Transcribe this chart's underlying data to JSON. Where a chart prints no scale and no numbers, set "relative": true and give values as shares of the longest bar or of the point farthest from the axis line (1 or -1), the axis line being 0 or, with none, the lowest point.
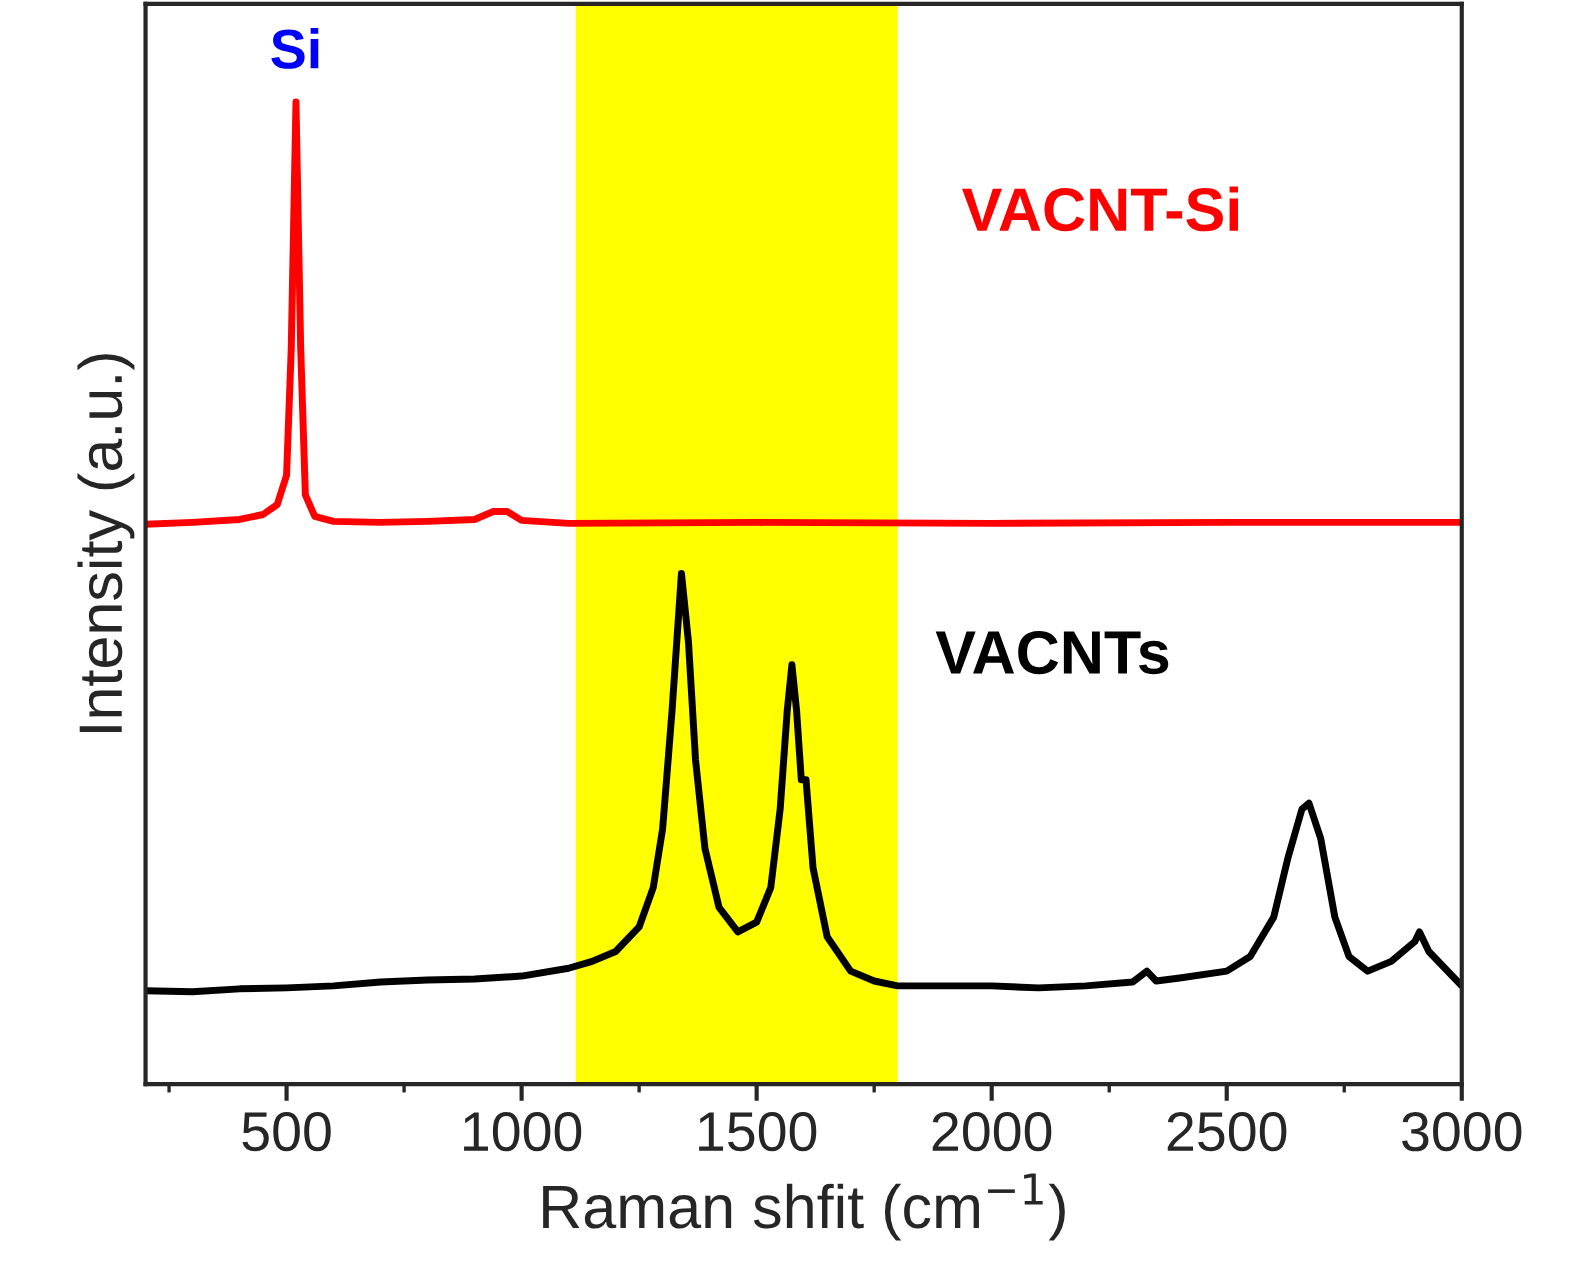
{
  "chart_data": {
    "type": "line",
    "relative": true,
    "xlabel": "Raman shfit (cm$^{−1}$)",
    "ylabel": "Intensity (a.u.)",
    "xlim": [
      200,
      3000
    ],
    "xticks": [
      500,
      1000,
      1500,
      2000,
      2500,
      3000
    ],
    "tick_labels": "x",
    "grid": false,
    "legend": false,
    "marker": "none",
    "line_style": "solid",
    "bands": [
      {
        "axis": "x",
        "from": 1115,
        "to": 1800,
        "color": "#ffff00"
      }
    ],
    "annotations": [
      {
        "text": "Si",
        "x": 520,
        "y": 1.0
      }
    ],
    "series": [
      {
        "name": "VACNT-Si",
        "color": "#ff0000",
        "x": [
          200,
          300,
          400,
          450,
          480,
          500,
          510,
          520,
          530,
          540,
          560,
          600,
          700,
          800,
          900,
          940,
          970,
          1000,
          1100,
          1500,
          2000,
          2500,
          3000
        ],
        "values": [
          0.57,
          0.572,
          0.575,
          0.58,
          0.59,
          0.62,
          0.75,
          1.0,
          0.75,
          0.6,
          0.578,
          0.573,
          0.572,
          0.573,
          0.575,
          0.583,
          0.583,
          0.574,
          0.571,
          0.572,
          0.571,
          0.572,
          0.572
        ]
      },
      {
        "name": "VACNTs",
        "color": "#000000",
        "x": [
          200,
          300,
          400,
          500,
          600,
          700,
          800,
          900,
          1000,
          1100,
          1150,
          1200,
          1250,
          1280,
          1300,
          1320,
          1340,
          1355,
          1370,
          1390,
          1420,
          1460,
          1500,
          1530,
          1550,
          1565,
          1575,
          1585,
          1595,
          1605,
          1620,
          1650,
          1700,
          1750,
          1800,
          1900,
          2000,
          2100,
          2200,
          2300,
          2330,
          2350,
          2400,
          2500,
          2550,
          2600,
          2630,
          2660,
          2675,
          2700,
          2730,
          2760,
          2800,
          2850,
          2900,
          2910,
          2930,
          2960,
          3000
        ],
        "values": [
          0.095,
          0.094,
          0.097,
          0.098,
          0.1,
          0.104,
          0.106,
          0.107,
          0.11,
          0.118,
          0.125,
          0.135,
          0.16,
          0.2,
          0.26,
          0.38,
          0.52,
          0.45,
          0.33,
          0.24,
          0.18,
          0.155,
          0.165,
          0.2,
          0.28,
          0.38,
          0.427,
          0.38,
          0.31,
          0.31,
          0.22,
          0.15,
          0.115,
          0.105,
          0.1,
          0.1,
          0.1,
          0.098,
          0.1,
          0.104,
          0.115,
          0.105,
          0.108,
          0.115,
          0.13,
          0.17,
          0.23,
          0.28,
          0.286,
          0.25,
          0.17,
          0.13,
          0.115,
          0.125,
          0.145,
          0.155,
          0.135,
          0.12,
          0.1
        ]
      }
    ]
  }
}
